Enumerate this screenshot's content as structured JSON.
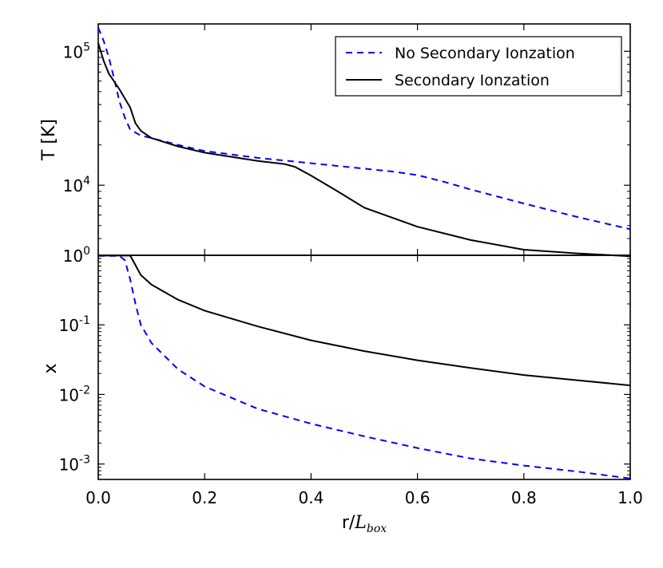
{
  "chart_data": [
    {
      "type": "line",
      "panel": "top",
      "ylabel": "T [K]",
      "yscale": "log",
      "ylim": [
        3000,
        160000
      ],
      "xlim": [
        0,
        1
      ],
      "yticks": [
        {
          "value": 100000,
          "base": "10",
          "exp": "5"
        },
        {
          "value": 10000,
          "base": "10",
          "exp": "4"
        }
      ],
      "legend": {
        "placement": "top-right"
      },
      "series": [
        {
          "name": "No Secondary Ionzation",
          "color": "#0000ff",
          "dash": "dashed",
          "x": [
            0.0,
            0.01,
            0.02,
            0.03,
            0.04,
            0.05,
            0.06,
            0.08,
            0.1,
            0.15,
            0.2,
            0.3,
            0.4,
            0.5,
            0.55,
            0.6,
            0.65,
            0.7,
            0.8,
            0.9,
            1.0
          ],
          "y": [
            150000,
            120000,
            90000,
            62000,
            42000,
            32000,
            26000,
            23500,
            22500,
            20000,
            18000,
            16000,
            14600,
            13300,
            12700,
            11900,
            10600,
            9300,
            7300,
            5800,
            4700
          ]
        },
        {
          "name": "Secondary Ionzation",
          "color": "#000000",
          "dash": "solid",
          "x": [
            0.0,
            0.01,
            0.02,
            0.04,
            0.06,
            0.07,
            0.08,
            0.1,
            0.15,
            0.2,
            0.3,
            0.35,
            0.37,
            0.4,
            0.45,
            0.5,
            0.6,
            0.7,
            0.8,
            0.9,
            1.0
          ],
          "y": [
            115000,
            85000,
            68000,
            52000,
            38000,
            29000,
            25500,
            22500,
            19500,
            17500,
            15200,
            14400,
            13700,
            11800,
            9000,
            6800,
            4900,
            3900,
            3300,
            3100,
            2950
          ]
        }
      ]
    },
    {
      "type": "line",
      "panel": "bottom",
      "xlabel": "r/L_box",
      "ylabel": "x",
      "yscale": "log",
      "ylim": [
        0.0006,
        1.0
      ],
      "xlim": [
        0,
        1
      ],
      "xticks": [
        "0.0",
        "0.2",
        "0.4",
        "0.6",
        "0.8",
        "1.0"
      ],
      "yticks": [
        {
          "value": 1,
          "base": "10",
          "exp": "0"
        },
        {
          "value": 0.1,
          "base": "10",
          "exp": "-1"
        },
        {
          "value": 0.01,
          "base": "10",
          "exp": "-2"
        },
        {
          "value": 0.001,
          "base": "10",
          "exp": "-3"
        }
      ],
      "series": [
        {
          "name": "No Secondary Ionzation",
          "color": "#0000ff",
          "dash": "dashed",
          "x": [
            0.0,
            0.04,
            0.05,
            0.06,
            0.07,
            0.08,
            0.1,
            0.15,
            0.2,
            0.3,
            0.4,
            0.5,
            0.6,
            0.7,
            0.8,
            0.9,
            1.0
          ],
          "y": [
            0.98,
            0.98,
            0.85,
            0.45,
            0.2,
            0.1,
            0.055,
            0.023,
            0.013,
            0.0062,
            0.0038,
            0.0025,
            0.0017,
            0.0012,
            0.00095,
            0.00078,
            0.00062
          ]
        },
        {
          "name": "Secondary Ionzation",
          "color": "#000000",
          "dash": "solid",
          "x": [
            0.0,
            0.06,
            0.07,
            0.08,
            0.1,
            0.15,
            0.2,
            0.3,
            0.4,
            0.5,
            0.6,
            0.7,
            0.8,
            0.9,
            1.0
          ],
          "y": [
            0.99,
            0.99,
            0.72,
            0.52,
            0.38,
            0.23,
            0.16,
            0.095,
            0.06,
            0.042,
            0.031,
            0.024,
            0.019,
            0.016,
            0.0135
          ]
        }
      ]
    }
  ],
  "x_axis": {
    "label_main": "r/",
    "label_math": "L",
    "label_sub": "box"
  }
}
